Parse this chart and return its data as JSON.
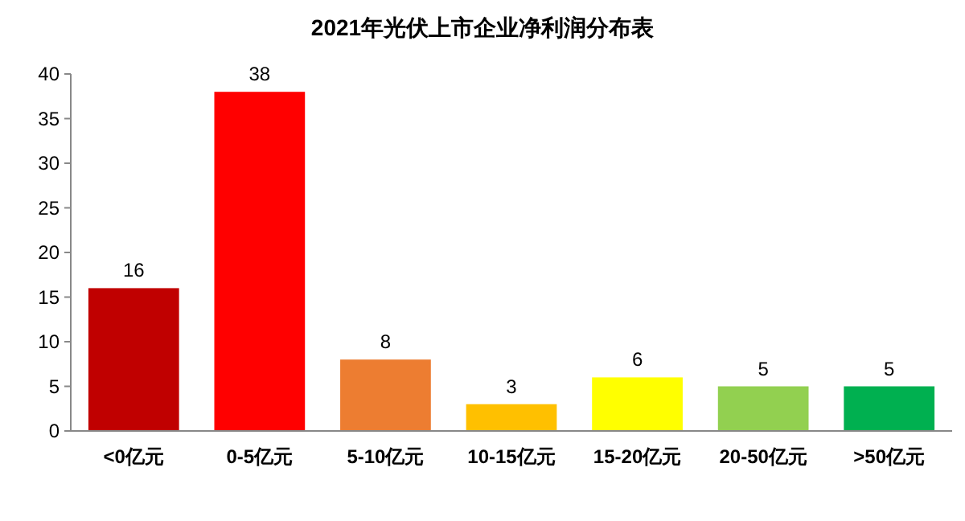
{
  "chart_data": {
    "type": "bar",
    "title": "2021年光伏上市企业净利润分布表",
    "categories": [
      "<0亿元",
      "0-5亿元",
      "5-10亿元",
      "10-15亿元",
      "15-20亿元",
      "20-50亿元",
      ">50亿元"
    ],
    "values": [
      16,
      38,
      8,
      3,
      6,
      5,
      5
    ],
    "colors": [
      "#c00000",
      "#ff0000",
      "#ed7d31",
      "#ffc000",
      "#ffff00",
      "#92d050",
      "#00b050"
    ],
    "ylim": [
      0,
      40
    ],
    "yticks": [
      0,
      5,
      10,
      15,
      20,
      25,
      30,
      35,
      40
    ],
    "data_labels": true,
    "grid": false
  }
}
